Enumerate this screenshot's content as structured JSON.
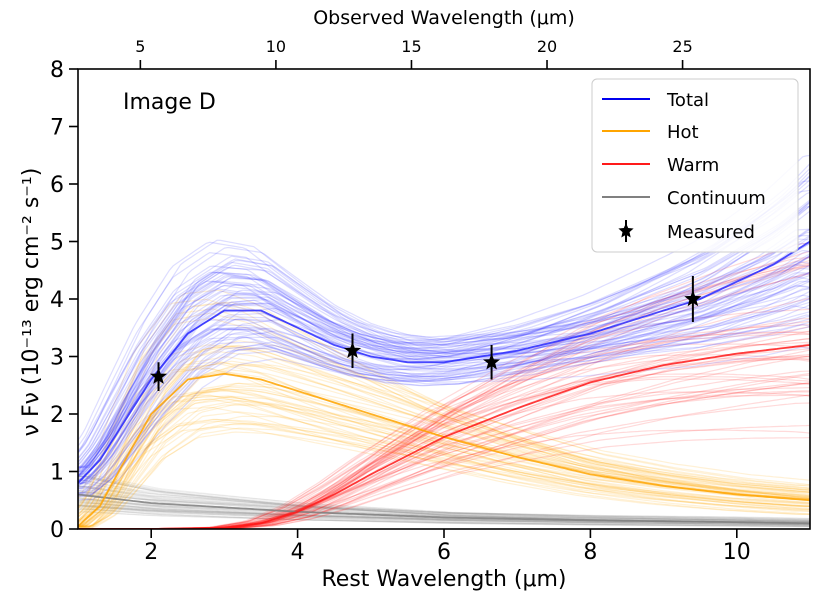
{
  "chart_data": {
    "type": "line",
    "panel_label": "Image D",
    "xlabel": "Rest Wavelength (μm)",
    "x2label": "Observed Wavelength (μm)",
    "ylabel": "ν Fν (10⁻¹³ erg cm⁻² s⁻¹)",
    "xlim": [
      1.0,
      11.0
    ],
    "ylim": [
      0,
      8
    ],
    "xticks": [
      2,
      4,
      6,
      8,
      10
    ],
    "yticks": [
      0,
      1,
      2,
      3,
      4,
      5,
      6,
      7,
      8
    ],
    "observed_ticks": [
      5,
      10,
      15,
      20,
      25
    ],
    "observed_per_rest": 2.7,
    "legend": {
      "placement": "top-right",
      "entries": [
        {
          "label": "Total",
          "color": "#0000ee",
          "kind": "line"
        },
        {
          "label": "Hot",
          "color": "#ffa500",
          "kind": "line"
        },
        {
          "label": "Warm",
          "color": "#ff1a1a",
          "kind": "line"
        },
        {
          "label": "Continuum",
          "color": "#808080",
          "kind": "line"
        },
        {
          "label": "Measured",
          "color": "#000000",
          "kind": "star"
        }
      ]
    },
    "series": [
      {
        "name": "Total",
        "color": "#2b2bff",
        "x": [
          1.0,
          1.3,
          1.6,
          2.0,
          2.5,
          3.0,
          3.5,
          4.0,
          4.5,
          5.0,
          5.5,
          6.0,
          6.5,
          7.0,
          7.5,
          8.0,
          8.5,
          9.0,
          9.5,
          10.0,
          10.5,
          11.0
        ],
        "y": [
          0.8,
          1.2,
          1.8,
          2.6,
          3.4,
          3.8,
          3.8,
          3.5,
          3.2,
          3.0,
          2.9,
          2.9,
          3.0,
          3.1,
          3.25,
          3.4,
          3.6,
          3.8,
          4.0,
          4.3,
          4.6,
          5.0
        ]
      },
      {
        "name": "Hot",
        "color": "#ffa500",
        "x": [
          1.0,
          1.3,
          1.6,
          2.0,
          2.5,
          3.0,
          3.5,
          4.0,
          5.0,
          6.0,
          7.0,
          8.0,
          9.0,
          10.0,
          11.0
        ],
        "y": [
          0.05,
          0.4,
          1.1,
          2.0,
          2.6,
          2.7,
          2.6,
          2.4,
          2.0,
          1.6,
          1.25,
          0.95,
          0.75,
          0.6,
          0.5
        ]
      },
      {
        "name": "Warm",
        "color": "#ff1a1a",
        "x": [
          1.0,
          2.0,
          3.0,
          3.5,
          4.0,
          4.5,
          5.0,
          6.0,
          7.0,
          8.0,
          9.0,
          10.0,
          11.0
        ],
        "y": [
          0.0,
          0.0,
          0.02,
          0.1,
          0.3,
          0.6,
          0.95,
          1.6,
          2.1,
          2.55,
          2.85,
          3.05,
          3.2
        ]
      },
      {
        "name": "Continuum",
        "color": "#808080",
        "x": [
          1.0,
          2.0,
          4.0,
          6.0,
          8.0,
          10.0,
          11.0
        ],
        "y": [
          0.6,
          0.45,
          0.3,
          0.2,
          0.15,
          0.12,
          0.1
        ]
      }
    ],
    "measured": [
      {
        "x": 2.1,
        "y": 2.65,
        "err": 0.25
      },
      {
        "x": 4.75,
        "y": 3.1,
        "err": 0.3
      },
      {
        "x": 6.65,
        "y": 2.9,
        "err": 0.3
      },
      {
        "x": 9.4,
        "y": 4.0,
        "err": 0.4
      }
    ]
  }
}
